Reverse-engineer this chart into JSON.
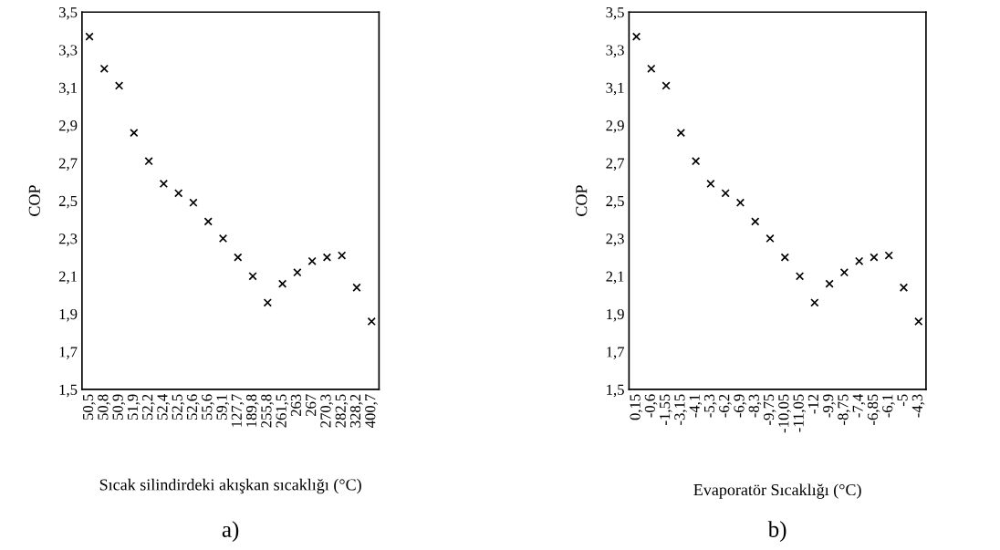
{
  "chart_data": [
    {
      "type": "scatter",
      "xlabel": "Sıcak silindirdeki akışkan sıcaklığı (°C)",
      "ylabel": "COP",
      "annotations": [
        "a)"
      ],
      "categories": [
        "50,5",
        "50,8",
        "50,9",
        "51,9",
        "52,2",
        "52,4",
        "52,5",
        "52,6",
        "55,6",
        "59,1",
        "127,7",
        "189,8",
        "255,8",
        "261,5",
        "263",
        "267",
        "270,3",
        "282,5",
        "328,2",
        "400,7"
      ],
      "values": [
        3.37,
        3.2,
        3.11,
        2.86,
        2.71,
        2.59,
        2.54,
        2.49,
        2.39,
        2.3,
        2.2,
        2.1,
        1.96,
        2.06,
        2.12,
        2.18,
        2.2,
        2.21,
        2.04,
        1.86
      ],
      "color": "#000000",
      "marker": "cross",
      "ylim": [
        1.5,
        3.5
      ],
      "yticks": [
        {
          "value": 1.5,
          "label": "1,5"
        },
        {
          "value": 1.7,
          "label": "1,7"
        },
        {
          "value": 1.9,
          "label": "1,9"
        },
        {
          "value": 2.1,
          "label": "2,1"
        },
        {
          "value": 2.3,
          "label": "2,3"
        },
        {
          "value": 2.5,
          "label": "2,5"
        },
        {
          "value": 2.7,
          "label": "2,7"
        },
        {
          "value": 2.9,
          "label": "2,9"
        },
        {
          "value": 3.1,
          "label": "3,1"
        },
        {
          "value": 3.3,
          "label": "3,3"
        },
        {
          "value": 3.5,
          "label": "3,5"
        }
      ]
    },
    {
      "type": "scatter",
      "xlabel": "Evaporatör Sıcaklığı (°C)",
      "ylabel": "COP",
      "annotations": [
        "b)"
      ],
      "categories": [
        "0,15",
        "-0,6",
        "-1,55",
        "-3,15",
        "-4,1",
        "-5,3",
        "-6,2",
        "-6,9",
        "-8,3",
        "-9,75",
        "-10,05",
        "-11,05",
        "-12",
        "-9,9",
        "-8,75",
        "-7,4",
        "-6,85",
        "-6,1",
        "-5",
        "-4,3"
      ],
      "values": [
        3.37,
        3.2,
        3.11,
        2.86,
        2.71,
        2.59,
        2.54,
        2.49,
        2.39,
        2.3,
        2.2,
        2.1,
        1.96,
        2.06,
        2.12,
        2.18,
        2.2,
        2.21,
        2.04,
        1.86
      ],
      "color": "#000000",
      "marker": "cross",
      "ylim": [
        1.5,
        3.5
      ],
      "yticks": [
        {
          "value": 1.5,
          "label": "1,5"
        },
        {
          "value": 1.7,
          "label": "1,7"
        },
        {
          "value": 1.9,
          "label": "1,9"
        },
        {
          "value": 2.1,
          "label": "2,1"
        },
        {
          "value": 2.3,
          "label": "2,3"
        },
        {
          "value": 2.5,
          "label": "2,5"
        },
        {
          "value": 2.7,
          "label": "2,7"
        },
        {
          "value": 2.9,
          "label": "2,9"
        },
        {
          "value": 3.1,
          "label": "3,1"
        },
        {
          "value": 3.3,
          "label": "3,3"
        },
        {
          "value": 3.5,
          "label": "3,5"
        }
      ]
    }
  ]
}
